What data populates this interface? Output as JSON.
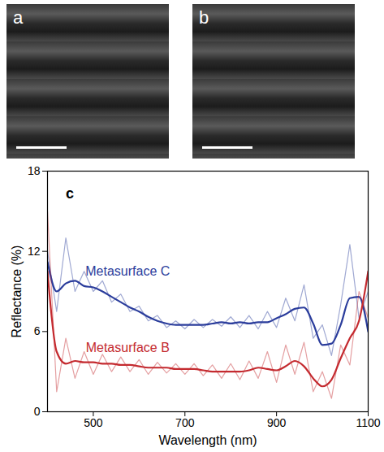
{
  "images": [
    {
      "label": "a"
    },
    {
      "label": "b"
    }
  ],
  "chart_data": {
    "type": "line",
    "x_label": "Wavelength (nm)",
    "y_label": "Reflectance (%)",
    "annotations": [
      {
        "text": "c",
        "x": 440,
        "y": 16.3
      }
    ],
    "xlim": [
      400,
      1100
    ],
    "xticks": [
      500,
      700,
      900,
      1100
    ],
    "ylim": [
      0,
      18
    ],
    "yticks": [
      0,
      6,
      12,
      18
    ],
    "grid": false,
    "x": [
      400,
      420,
      440,
      460,
      480,
      500,
      520,
      540,
      560,
      580,
      600,
      620,
      640,
      660,
      680,
      700,
      720,
      740,
      760,
      780,
      800,
      820,
      840,
      860,
      880,
      900,
      920,
      940,
      960,
      980,
      1000,
      1020,
      1040,
      1060,
      1080,
      1100
    ],
    "series": [
      {
        "name": "Metasurface C",
        "color": "#2b3d9c",
        "line_style": "solid",
        "label_at": {
          "x": 575,
          "y": 10.5
        },
        "values": [
          11.2,
          9.0,
          9.6,
          9.8,
          9.4,
          9.3,
          9.0,
          8.6,
          8.2,
          7.8,
          7.5,
          7.1,
          6.8,
          6.6,
          6.5,
          6.5,
          6.5,
          6.5,
          6.6,
          6.7,
          6.6,
          6.7,
          6.6,
          6.7,
          6.7,
          7.0,
          7.3,
          7.7,
          7.8,
          6.6,
          5.0,
          5.1,
          6.5,
          8.5,
          8.6,
          6.0
        ],
        "raw": [
          12,
          7.5,
          13,
          9,
          10.5,
          9,
          9.8,
          8.2,
          8.8,
          7.5,
          7.9,
          6.8,
          7.2,
          6.3,
          6.8,
          6.2,
          6.9,
          6.3,
          6.9,
          6.4,
          7.1,
          6.3,
          7.2,
          6.2,
          7.5,
          6.3,
          8.5,
          6.8,
          9.5,
          5.5,
          6.5,
          4.2,
          8,
          12.5,
          7,
          9
        ]
      },
      {
        "name": "Metasurface B",
        "color": "#c42a2f",
        "line_style": "solid",
        "label_at": {
          "x": 575,
          "y": 4.8
        },
        "values": [
          10.5,
          4.5,
          3.6,
          3.8,
          3.7,
          3.7,
          3.6,
          3.6,
          3.5,
          3.5,
          3.4,
          3.3,
          3.3,
          3.3,
          3.2,
          3.2,
          3.2,
          3.1,
          3.0,
          3.0,
          3.0,
          3.0,
          3.1,
          3.3,
          3.2,
          3.1,
          3.4,
          3.8,
          3.4,
          2.5,
          1.9,
          2.4,
          4.0,
          5.5,
          6.8,
          10.5
        ],
        "raw": [
          15,
          1.5,
          5.5,
          2.5,
          4.5,
          2.8,
          4.3,
          3,
          4.1,
          3,
          3.9,
          2.8,
          3.7,
          2.9,
          3.6,
          2.8,
          3.6,
          2.7,
          3.5,
          2.5,
          3.6,
          2.4,
          3.8,
          2.5,
          4.5,
          2.2,
          5,
          2.8,
          5.2,
          1.5,
          3,
          1,
          5,
          3.5,
          9,
          7
        ]
      }
    ]
  }
}
